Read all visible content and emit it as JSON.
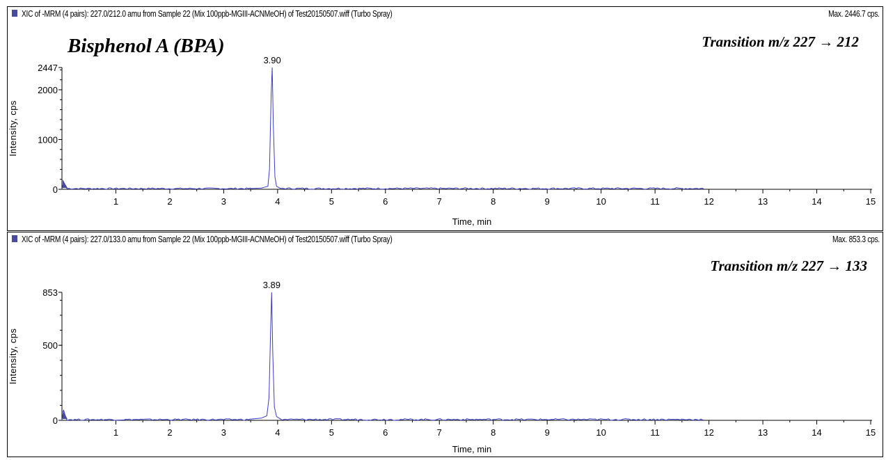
{
  "compound_name": "Bisphenol A (BPA)",
  "colors": {
    "trace": "#3b3bd0",
    "marker": "#4a4aa0",
    "axis": "#000000"
  },
  "chart_data": [
    {
      "type": "line",
      "header": "XIC of -MRM (4 pairs): 227.0/212.0 amu from Sample 22 (Mix 100ppb-MGIII-ACNMeOH) of Test20150507.wiff (Turbo Spray)",
      "max_label": "Max. 2446.7 cps.",
      "annotation": "Transition m/z 227  → 212",
      "xlabel": "Time, min",
      "ylabel": "Intensity, cps",
      "xlim": [
        0,
        15
      ],
      "ylim": [
        0,
        2447
      ],
      "x_ticks": [
        1,
        2,
        3,
        4,
        5,
        6,
        7,
        8,
        9,
        10,
        11,
        12,
        13,
        14,
        15
      ],
      "y_ticks": [
        0,
        1000,
        2000,
        2447
      ],
      "peak_label": "3.90",
      "trace_end": 11.9,
      "series": [
        {
          "x": [
            0,
            0.03,
            0.08,
            3.5,
            3.7,
            3.82,
            3.85,
            3.88,
            3.9,
            3.92,
            3.95,
            3.98,
            4.05,
            11.9
          ],
          "y": [
            0,
            150,
            25,
            15,
            25,
            60,
            400,
            1900,
            2447,
            1300,
            250,
            60,
            20,
            5
          ]
        }
      ]
    },
    {
      "type": "line",
      "header": "XIC of -MRM (4 pairs): 227.0/133.0 amu from Sample 22 (Mix 100ppb-MGIII-ACNMeOH) of Test20150507.wiff (Turbo Spray)",
      "max_label": "Max. 853.3 cps.",
      "annotation": "Transition m/z 227  → 133",
      "xlabel": "Time, min",
      "ylabel": "Intensity, cps",
      "xlim": [
        0,
        15
      ],
      "ylim": [
        0,
        853
      ],
      "x_ticks": [
        1,
        2,
        3,
        4,
        5,
        6,
        7,
        8,
        9,
        10,
        11,
        12,
        13,
        14,
        15
      ],
      "y_ticks": [
        0,
        500,
        853
      ],
      "peak_label": "3.89",
      "trace_end": 11.9,
      "series": [
        {
          "x": [
            0,
            0.03,
            0.08,
            3.5,
            3.7,
            3.8,
            3.84,
            3.87,
            3.89,
            3.91,
            3.94,
            3.98,
            4.05,
            11.9
          ],
          "y": [
            0,
            70,
            10,
            8,
            15,
            30,
            150,
            600,
            853,
            450,
            90,
            25,
            10,
            3
          ]
        }
      ]
    }
  ]
}
